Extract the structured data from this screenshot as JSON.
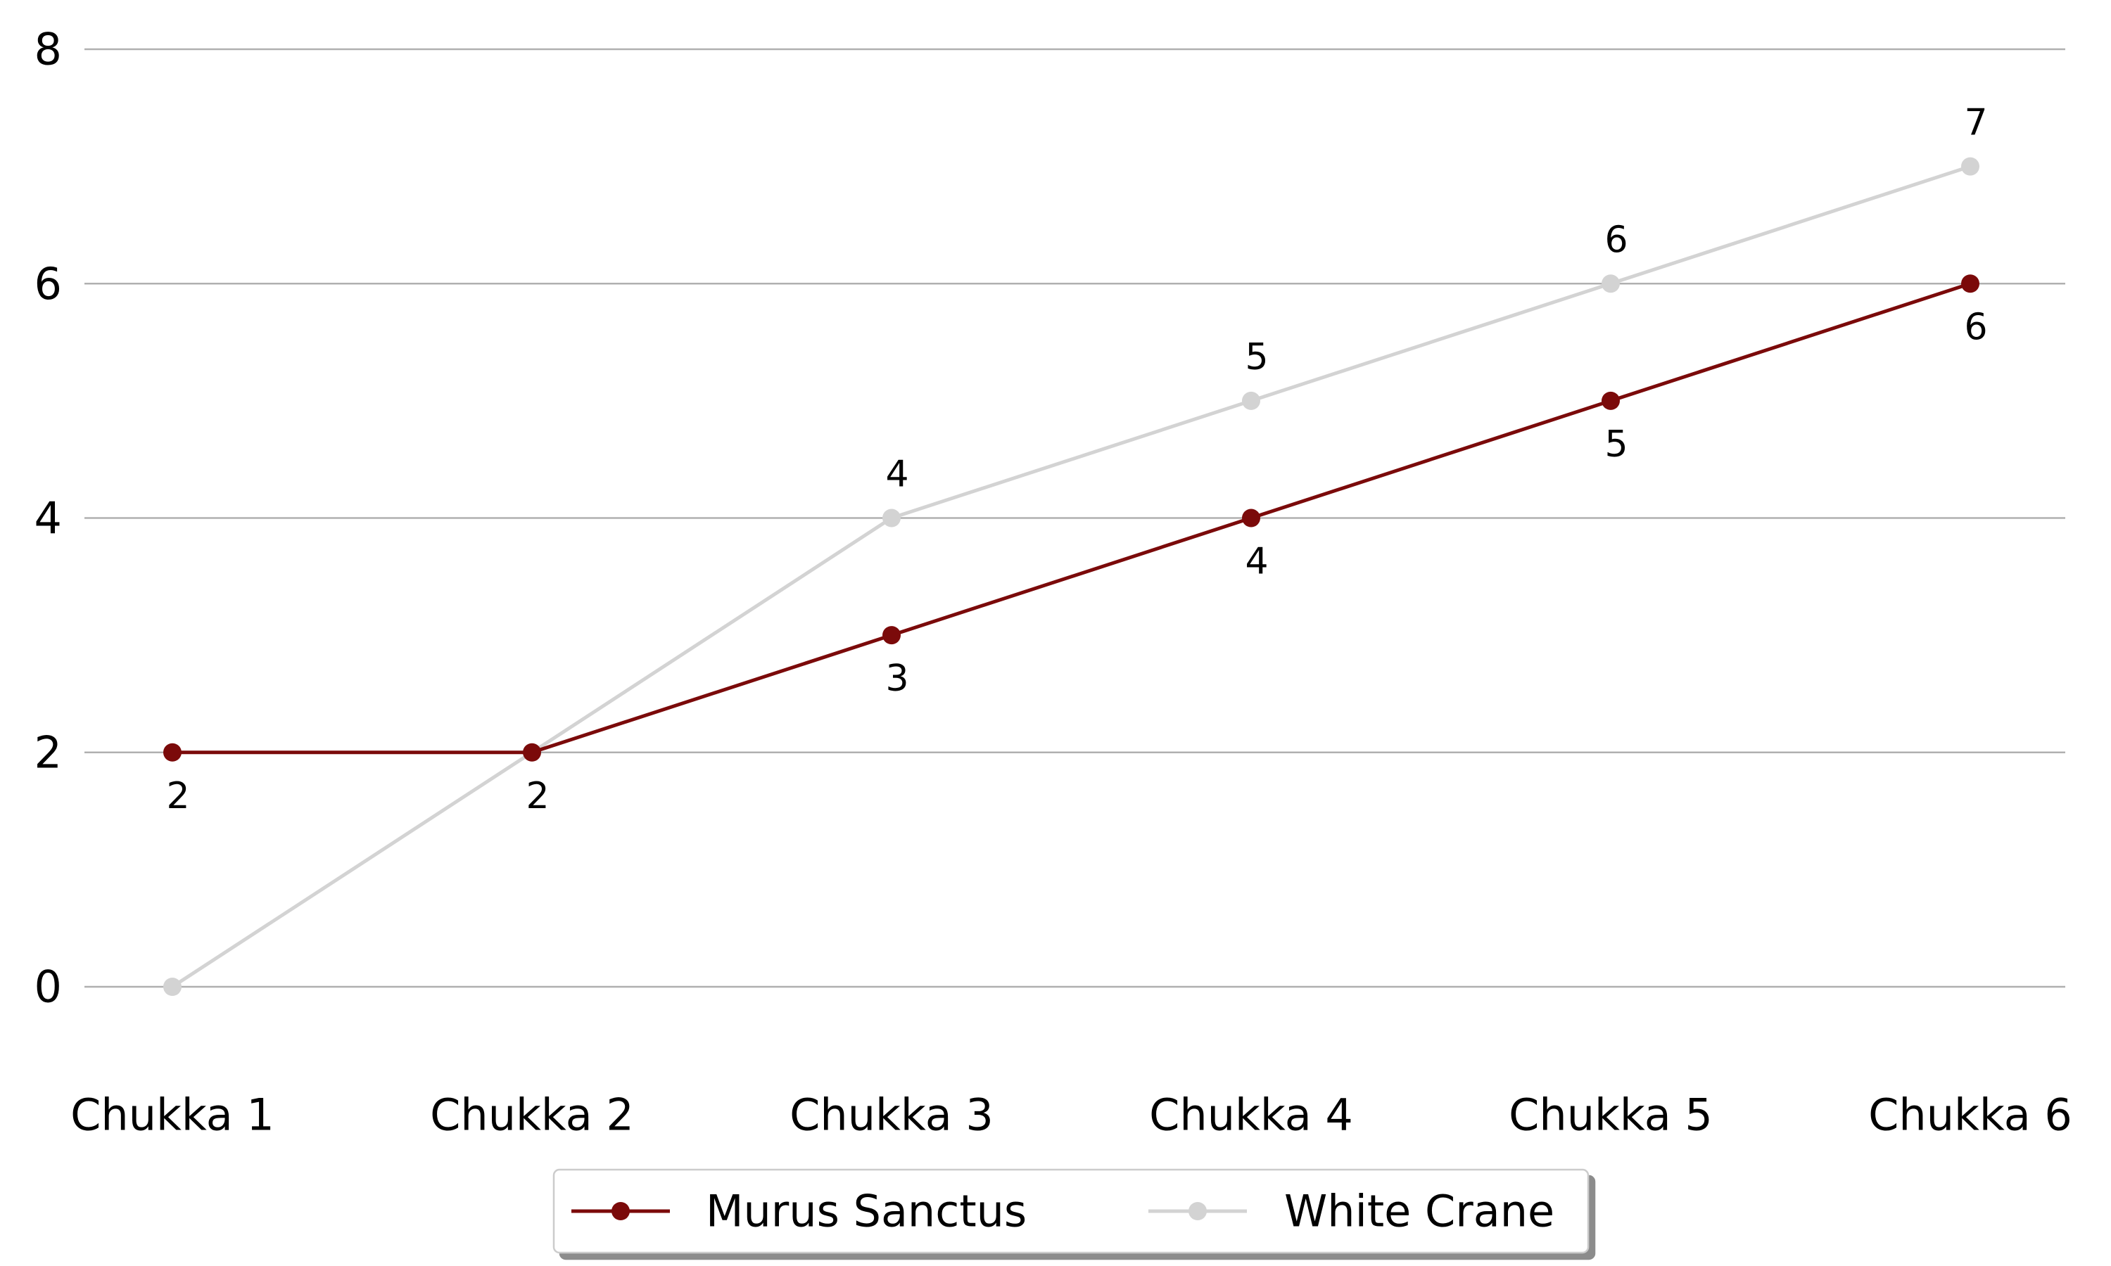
{
  "chart_data": {
    "type": "line",
    "title": "",
    "xlabel": "",
    "ylabel": "",
    "categories": [
      "Chukka 1",
      "Chukka 2",
      "Chukka 3",
      "Chukka 4",
      "Chukka 5",
      "Chukka 6"
    ],
    "series": [
      {
        "name": "Murus Sanctus",
        "values": [
          2,
          2,
          3,
          4,
          5,
          6
        ],
        "color": "#7b0a0a",
        "label_position": "below"
      },
      {
        "name": "White Crane",
        "values": [
          0,
          2,
          4,
          5,
          6,
          7
        ],
        "color": "#d3d3d3",
        "label_position": "above"
      }
    ],
    "ylim": [
      -0.75,
      8
    ],
    "yticks": [
      0,
      2,
      4,
      6,
      8
    ],
    "grid": "horizontal",
    "legend": "bottom-center"
  }
}
